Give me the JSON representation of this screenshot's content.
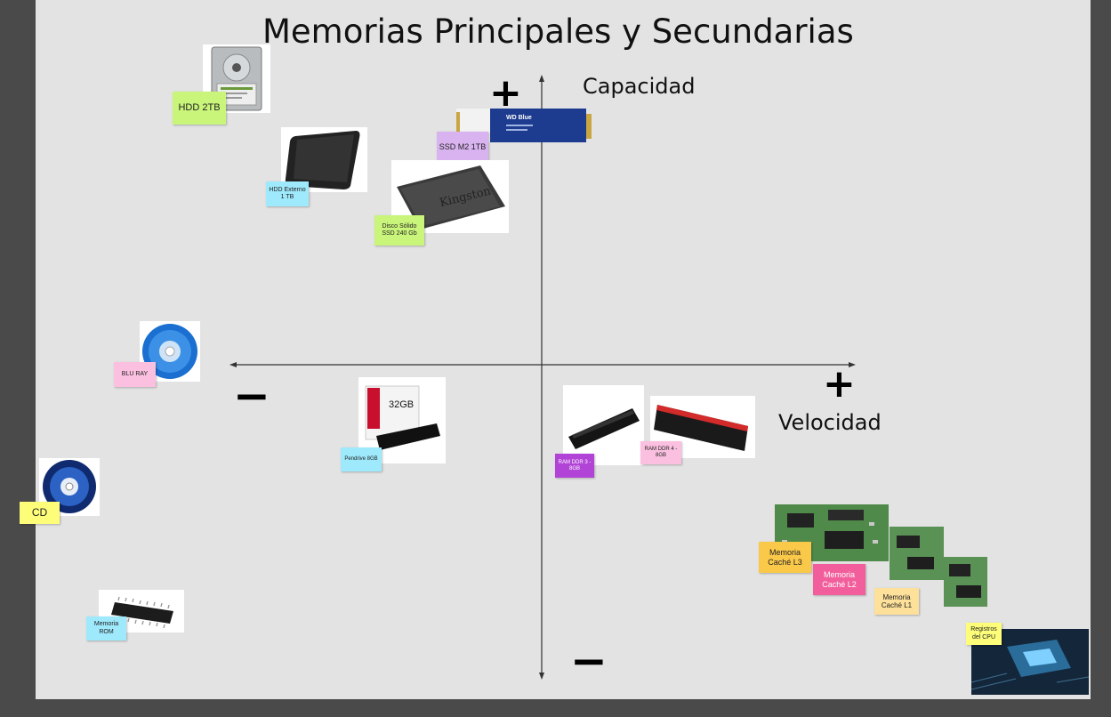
{
  "title": "Memorias Principales y Secundarias",
  "axes": {
    "y_label": "Capacidad",
    "x_label": "Velocidad",
    "y_plus": "+",
    "y_minus": "−",
    "x_plus": "+",
    "x_minus": "−"
  },
  "items": {
    "hdd_2tb": {
      "label": "HDD 2TB",
      "color": "#c9f57a"
    },
    "ssd_m2": {
      "label": "SSD M2 1TB",
      "color": "#d9b3f0",
      "product_text": "WD Blue"
    },
    "hdd_externo": {
      "label": "HDD Externo 1 TB",
      "color": "#9ee9fb"
    },
    "disco_ssd": {
      "label": "Disco Sólido SSD 240 Gb",
      "color": "#c9f57a",
      "product_text": "Kingston"
    },
    "blu_ray": {
      "label": "BLU RAY",
      "color": "#fbc0e0"
    },
    "pendrive": {
      "label": "Pendrive 8GB",
      "color": "#9ee9fb",
      "product_text": "32GB"
    },
    "ram_ddr3": {
      "label": "RAM DDR 3 - 8GB",
      "color": "#b144d6"
    },
    "ram_ddr4": {
      "label": "RAM DDR 4 - 8GB",
      "color": "#fbc0e0"
    },
    "cd": {
      "label": "CD",
      "color": "#fdfd7a"
    },
    "memoria_rom": {
      "label": "Memoria ROM",
      "color": "#9ee9fb"
    },
    "cache_l3": {
      "label": "Memoria Caché L3",
      "color": "#fbc94a"
    },
    "cache_l2": {
      "label": "Memoria Caché L2",
      "color": "#f25e9c"
    },
    "cache_l1": {
      "label": "Memoria Caché L1",
      "color": "#fde09a"
    },
    "registros": {
      "label": "Registros del CPU",
      "color": "#fdfd7a"
    }
  }
}
